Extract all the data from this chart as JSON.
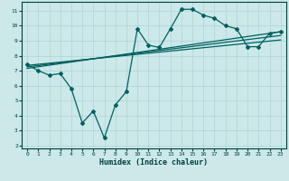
{
  "xlabel": "Humidex (Indice chaleur)",
  "ylabel": "",
  "bg_color": "#cce8e8",
  "grid_color": "#b0d4d4",
  "line_color": "#006060",
  "spine_color": "#004040",
  "xlim": [
    -0.5,
    23.5
  ],
  "ylim": [
    1.8,
    11.6
  ],
  "xticks": [
    0,
    1,
    2,
    3,
    4,
    5,
    6,
    7,
    8,
    9,
    10,
    11,
    12,
    13,
    14,
    15,
    16,
    17,
    18,
    19,
    20,
    21,
    22,
    23
  ],
  "yticks": [
    2,
    3,
    4,
    5,
    6,
    7,
    8,
    9,
    10,
    11
  ],
  "main_data_x": [
    0,
    1,
    2,
    3,
    4,
    5,
    6,
    7,
    8,
    9,
    10,
    11,
    12,
    13,
    14,
    15,
    16,
    17,
    18,
    19,
    20,
    21,
    22,
    23
  ],
  "main_data_y": [
    7.4,
    7.0,
    6.7,
    6.8,
    5.8,
    3.5,
    4.3,
    2.5,
    4.7,
    5.6,
    9.8,
    8.7,
    8.55,
    9.8,
    11.1,
    11.1,
    10.7,
    10.5,
    10.0,
    9.8,
    8.6,
    8.6,
    9.5,
    9.6
  ],
  "trend_line1_x": [
    0,
    23
  ],
  "trend_line1_y": [
    7.35,
    9.05
  ],
  "trend_line2_x": [
    0,
    23
  ],
  "trend_line2_y": [
    7.25,
    9.35
  ],
  "trend_line3_x": [
    0,
    23
  ],
  "trend_line3_y": [
    7.15,
    9.6
  ]
}
